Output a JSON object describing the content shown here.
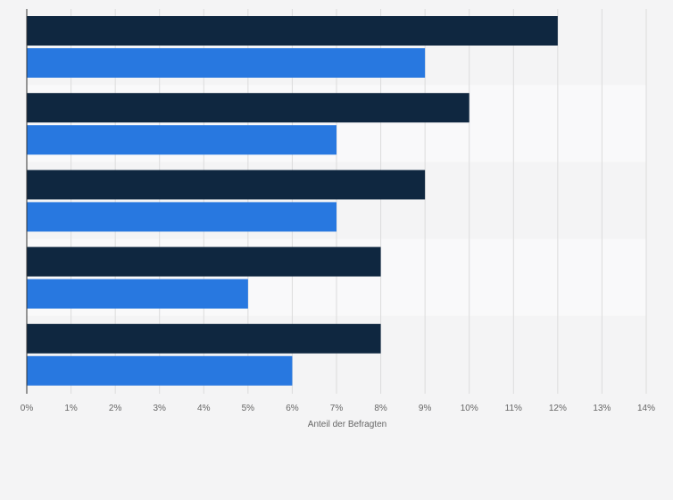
{
  "chart_data": {
    "type": "bar",
    "orientation": "horizontal",
    "categories": [
      "",
      "",
      "",
      "",
      ""
    ],
    "series": [
      {
        "values": [
          12,
          10,
          9,
          8,
          8
        ],
        "color": "#0f2740"
      },
      {
        "values": [
          9,
          7,
          7,
          5,
          6
        ],
        "color": "#2878e0"
      }
    ],
    "xlabel": "Anteil der Befragten",
    "xlim": [
      0,
      14
    ],
    "xticks": [
      "0%",
      "1%",
      "2%",
      "3%",
      "4%",
      "5%",
      "6%",
      "7%",
      "8%",
      "9%",
      "10%",
      "11%",
      "12%",
      "13%",
      "14%"
    ],
    "grid": true,
    "legend": "none"
  }
}
